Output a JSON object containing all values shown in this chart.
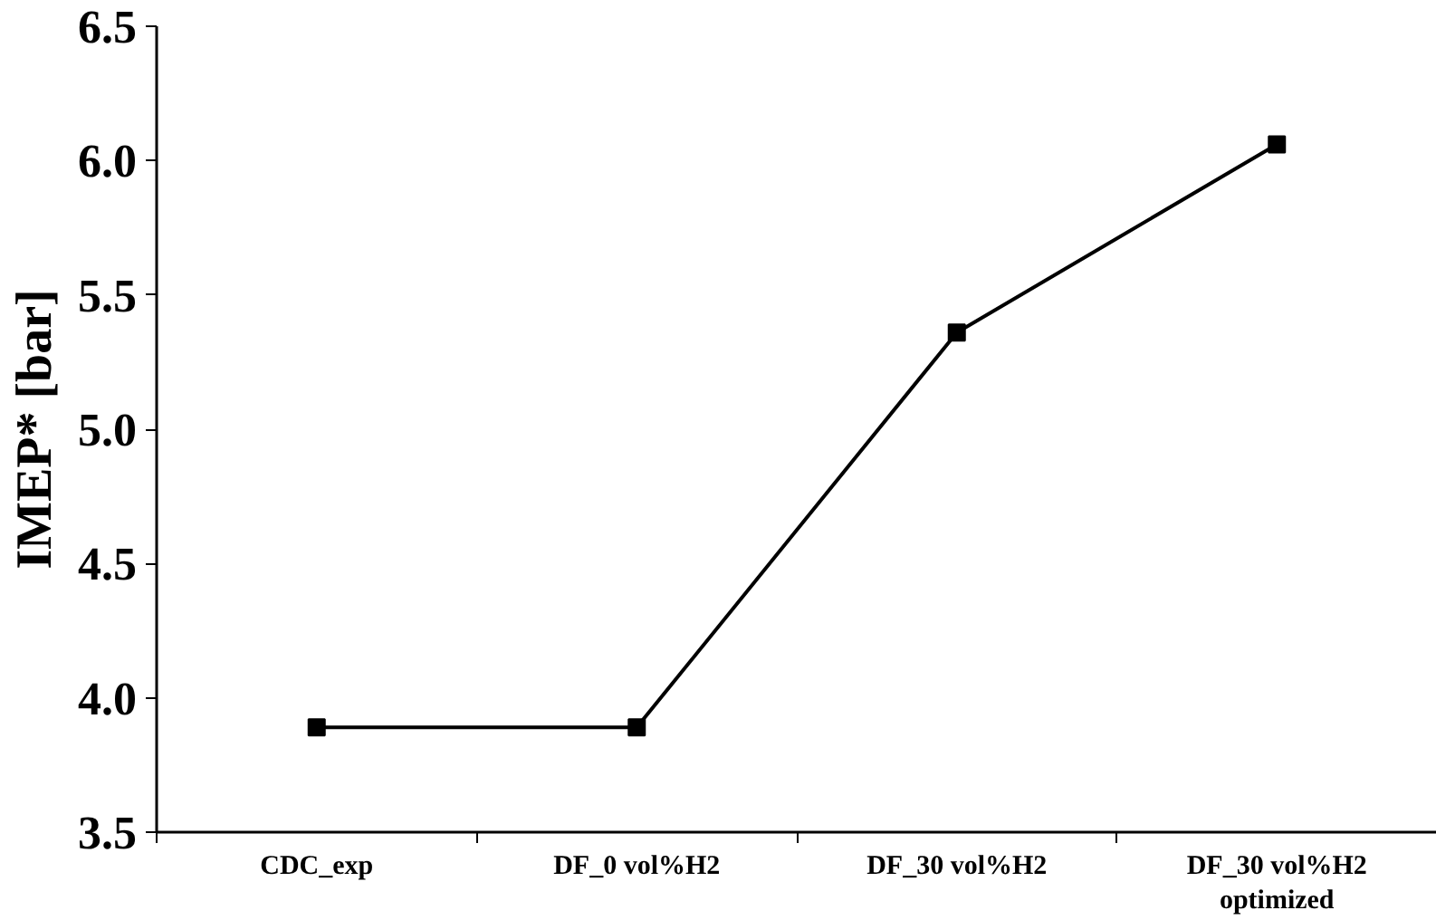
{
  "chart_data": {
    "type": "line",
    "ylabel": "IMEP* [bar]",
    "categories": [
      "CDC_exp",
      "DF_0 vol%H2",
      "DF_30 vol%H2",
      "DF_30 vol%H2\noptimized"
    ],
    "series": [
      {
        "color": "#000000",
        "values": [
          3.89,
          3.89,
          5.36,
          6.06
        ]
      }
    ],
    "ylim": [
      3.5,
      6.5
    ],
    "yticks": [
      {
        "value": 3.5,
        "label": "3.5"
      },
      {
        "value": 4.0,
        "label": "4.0"
      },
      {
        "value": 4.5,
        "label": "4.5"
      },
      {
        "value": 5.0,
        "label": "5.0"
      },
      {
        "value": 5.5,
        "label": "5.5"
      },
      {
        "value": 6.0,
        "label": "6.0"
      },
      {
        "value": 6.5,
        "label": "6.5"
      }
    ],
    "grid": false,
    "marker": "square",
    "line_style": "solid"
  }
}
